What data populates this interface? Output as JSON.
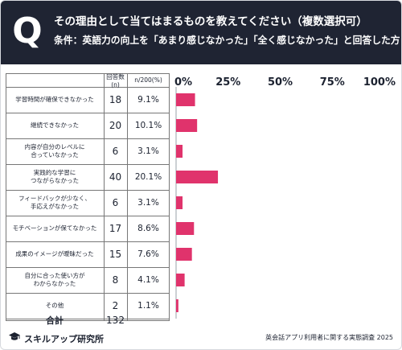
{
  "header": {
    "badge": "Q",
    "title": "その理由として当てはまるものを教えてください（複数選択可）",
    "subtitle": "条件：英語力の向上を「あまり感じなかった」「全く感じなかった」と回答した方"
  },
  "table": {
    "col_count_header": "回答数(n)",
    "col_pct_header": "n/200(%)",
    "total_label": "合計",
    "total_value": "132"
  },
  "colors": {
    "bar": "#e0336c",
    "header_bg": "#1f2433"
  },
  "chart_data": {
    "type": "bar",
    "orientation": "horizontal",
    "categories": [
      [
        "学習時間が確保できなかった"
      ],
      [
        "継続できなかった"
      ],
      [
        "内容が自分のレベルに",
        "合っていなかった"
      ],
      [
        "実践的な学習に",
        "つながらなかった"
      ],
      [
        "フィードバックが少なく、",
        "手応えがなかった"
      ],
      [
        "モチベーションが保てなかった"
      ],
      [
        "成果のイメージが曖昧だった"
      ],
      [
        "自分に合った使い方が",
        "わからなかった"
      ],
      [
        "その他"
      ]
    ],
    "counts": [
      18,
      20,
      6,
      40,
      6,
      17,
      15,
      8,
      2
    ],
    "percent_labels": [
      "9.1%",
      "10.1%",
      "3.1%",
      "20.1%",
      "3.1%",
      "8.6%",
      "7.6%",
      "4.1%",
      "1.1%"
    ],
    "values": [
      9.1,
      10.1,
      3.1,
      20.1,
      3.1,
      8.6,
      7.6,
      4.1,
      1.1
    ],
    "xlim": [
      0,
      100
    ],
    "xticks": [
      "0%",
      "25%",
      "50%",
      "75%",
      "100%"
    ],
    "grid": false
  },
  "footer": {
    "brand": "スキルアップ研究所",
    "note": "英会話アプリ利用者に関する実態調査 2025"
  }
}
